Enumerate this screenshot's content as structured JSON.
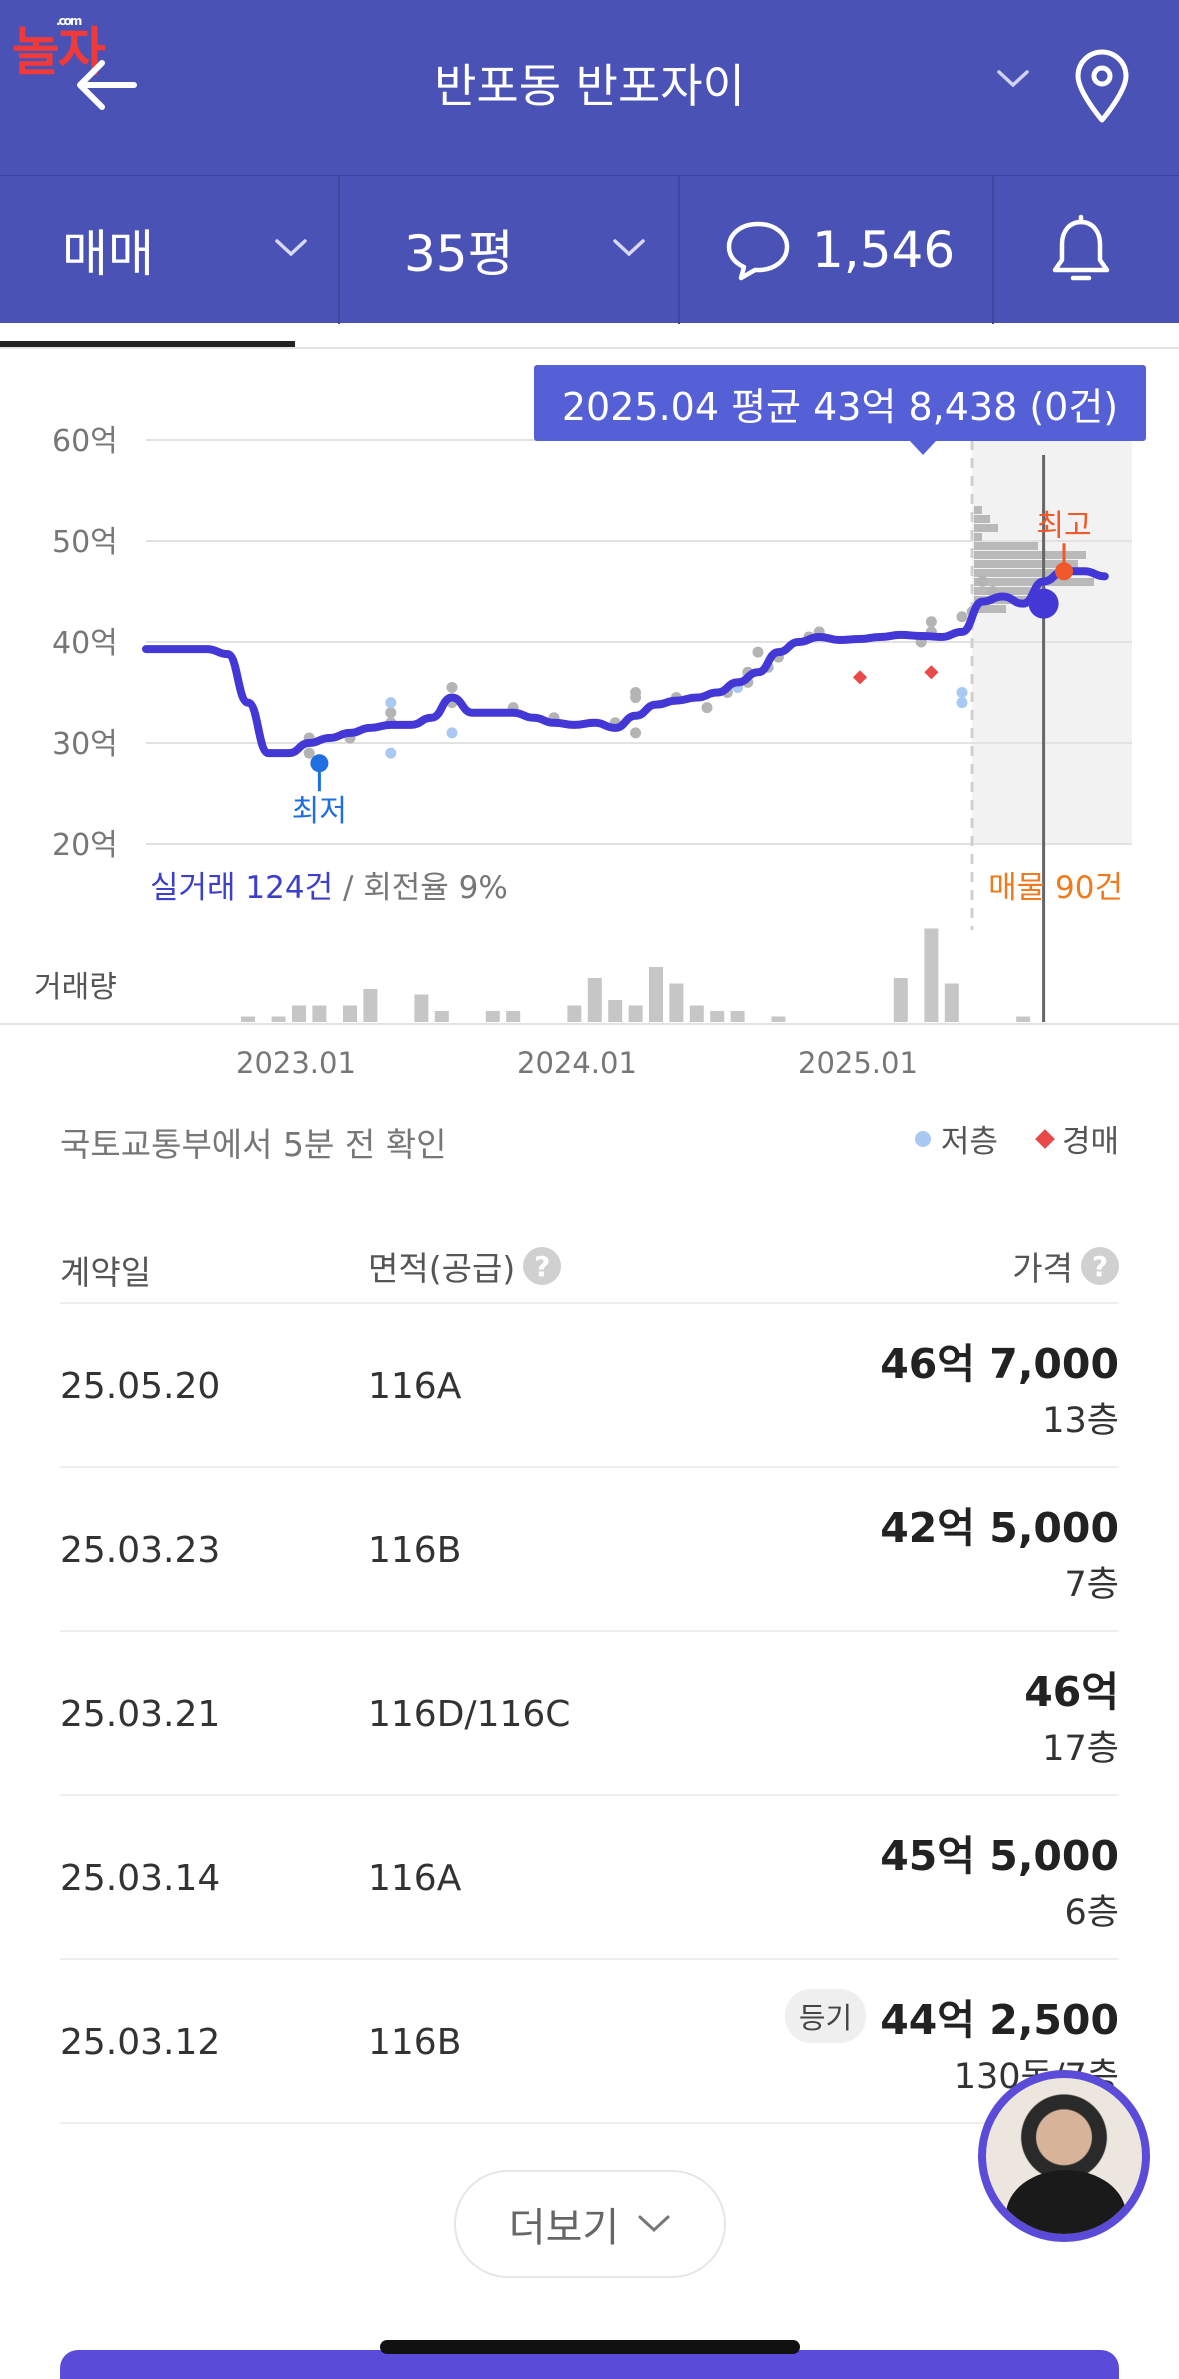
{
  "header": {
    "title": "반포동 반포자이",
    "logo_text": "놀자",
    "logo_sub": ".com"
  },
  "filters": {
    "deal_type": "매매",
    "size": "35평",
    "comment_count": "1,546"
  },
  "chart": {
    "tooltip": "2025.04 평균 43억 8,438 (0건)",
    "low_label": "최저",
    "high_label": "최고",
    "real_trade_count": "실거래 124건",
    "turnover": " / 회전율 9%",
    "listings": "매물 90건",
    "volume_label": "거래량",
    "x_ticks": [
      "2023.01",
      "2024.01",
      "2025.01"
    ],
    "source_text": "국토교통부에서 5분 전 확인",
    "legend_low": "저층",
    "legend_auction": "경매"
  },
  "chart_data": {
    "type": "line",
    "title": "",
    "ylabel": "",
    "yticks": [
      "60억",
      "50억",
      "40억",
      "30억",
      "20억"
    ],
    "ylim": [
      20,
      60
    ],
    "x_ticks": [
      "2023.01",
      "2024.01",
      "2025.01"
    ],
    "series": [
      {
        "points": [
          [
            0,
            39.3
          ],
          [
            2,
            39.3
          ],
          [
            4,
            39.3
          ],
          [
            6,
            39.3
          ],
          [
            8,
            38.8
          ],
          [
            10,
            34
          ],
          [
            12,
            29
          ],
          [
            14,
            29
          ],
          [
            16,
            30
          ],
          [
            18,
            30.5
          ],
          [
            20,
            31
          ],
          [
            22,
            31.5
          ],
          [
            24,
            31.8
          ],
          [
            26,
            31.8
          ],
          [
            28,
            32.5
          ],
          [
            30,
            34.5
          ],
          [
            32,
            33
          ],
          [
            34,
            33
          ],
          [
            36,
            33
          ],
          [
            38,
            32.5
          ],
          [
            40,
            32
          ],
          [
            42,
            31.8
          ],
          [
            44,
            32
          ],
          [
            46,
            31.5
          ],
          [
            48,
            32.7
          ],
          [
            50,
            33.8
          ],
          [
            52,
            34.2
          ],
          [
            54,
            34.5
          ],
          [
            56,
            35
          ],
          [
            58,
            36
          ],
          [
            60,
            37
          ],
          [
            62,
            39
          ],
          [
            64,
            40
          ],
          [
            66,
            40.5
          ],
          [
            68,
            40.2
          ],
          [
            70,
            40.3
          ],
          [
            72,
            40.5
          ],
          [
            74,
            40.7
          ],
          [
            76,
            40.6
          ],
          [
            78,
            40.5
          ],
          [
            80,
            41
          ],
          [
            82,
            44
          ],
          [
            84,
            44.5
          ],
          [
            86,
            43.8
          ],
          [
            88,
            46
          ],
          [
            90,
            47
          ],
          [
            92,
            47
          ],
          [
            94,
            46.5
          ]
        ]
      }
    ],
    "low_point": [
      17,
      28
    ],
    "high_point": [
      90,
      47
    ],
    "current_point": [
      88,
      43.8
    ],
    "scatter_grey": [
      [
        16,
        30.5
      ],
      [
        16,
        29
      ],
      [
        20,
        30.5
      ],
      [
        24,
        32
      ],
      [
        24,
        33
      ],
      [
        30,
        35.5
      ],
      [
        30,
        34
      ],
      [
        36,
        33.5
      ],
      [
        40,
        32.5
      ],
      [
        46,
        32
      ],
      [
        48,
        31
      ],
      [
        48,
        34.5
      ],
      [
        48,
        35
      ],
      [
        52,
        34.5
      ],
      [
        55,
        33.5
      ],
      [
        57,
        35
      ],
      [
        59,
        36
      ],
      [
        59,
        37
      ],
      [
        60,
        39
      ],
      [
        61,
        37.5
      ],
      [
        62,
        38.5
      ],
      [
        65,
        40.5
      ],
      [
        66,
        41
      ],
      [
        76,
        40
      ],
      [
        77,
        41
      ],
      [
        77,
        42
      ],
      [
        80,
        42.5
      ],
      [
        81,
        43
      ],
      [
        82,
        46
      ],
      [
        83,
        45
      ]
    ],
    "scatter_low": [
      [
        24,
        34
      ],
      [
        24,
        29
      ],
      [
        30,
        31
      ],
      [
        58,
        35.5
      ],
      [
        80,
        35
      ],
      [
        80,
        34
      ]
    ],
    "scatter_auction": [
      [
        70,
        36.5
      ],
      [
        77,
        37
      ]
    ],
    "volume": [
      [
        10,
        1
      ],
      [
        13,
        1
      ],
      [
        15,
        3
      ],
      [
        17,
        3
      ],
      [
        20,
        3
      ],
      [
        22,
        6
      ],
      [
        27,
        5
      ],
      [
        29,
        2
      ],
      [
        34,
        2
      ],
      [
        36,
        2
      ],
      [
        42,
        3
      ],
      [
        44,
        8
      ],
      [
        46,
        4
      ],
      [
        48,
        3
      ],
      [
        50,
        10
      ],
      [
        52,
        7
      ],
      [
        54,
        3
      ],
      [
        56,
        2
      ],
      [
        58,
        2
      ],
      [
        62,
        1
      ],
      [
        74,
        8
      ],
      [
        77,
        17
      ],
      [
        79,
        7
      ],
      [
        86,
        1
      ]
    ],
    "listing_histogram": [
      1,
      2,
      3,
      1,
      8,
      14,
      13,
      11,
      15,
      9,
      7,
      4
    ]
  },
  "table": {
    "col_date": "계약일",
    "col_area": "면적(공급)",
    "col_price": "가격",
    "help": "?",
    "rows": [
      {
        "date": "25.05.20",
        "area": "116A",
        "price": "46억 7,000",
        "floor": "13층",
        "badge": ""
      },
      {
        "date": "25.03.23",
        "area": "116B",
        "price": "42억 5,000",
        "floor": "7층",
        "badge": ""
      },
      {
        "date": "25.03.21",
        "area": "116D/116C",
        "price": "46억",
        "floor": "17층",
        "badge": ""
      },
      {
        "date": "25.03.14",
        "area": "116A",
        "price": "45억 5,000",
        "floor": "6층",
        "badge": ""
      },
      {
        "date": "25.03.12",
        "area": "116B",
        "price": "44억 2,500",
        "floor": "130동/7층",
        "badge": "등기"
      }
    ]
  },
  "more_button": "더보기",
  "colors": {
    "header_bg": "#4a52b5",
    "line": "#4338d6",
    "tooltip_bg": "#5660d6",
    "low_marker": "#1f6fe0",
    "high_marker": "#f05a2a",
    "listings_text": "#f07a1e"
  }
}
